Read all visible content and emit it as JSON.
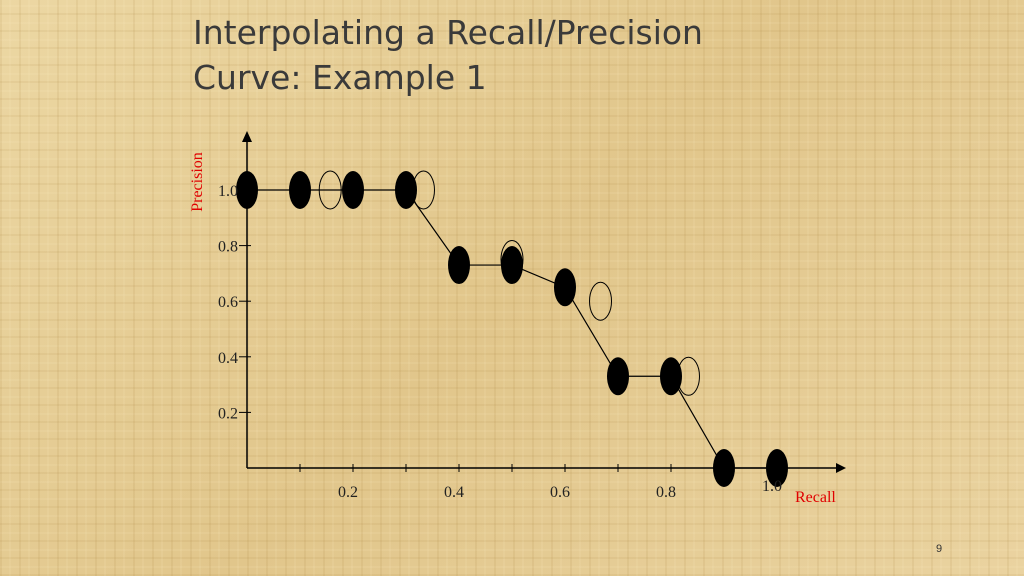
{
  "slide": {
    "title_line1": "Interpolating a Recall/Precision",
    "title_line2": "Curve: Example 1",
    "page_number": "9"
  },
  "chart_data": {
    "type": "scatter",
    "title": "",
    "xlabel": "Recall",
    "ylabel": "Precision",
    "axis_label_color": "#e00000",
    "x_tick_labels": [
      "0.2",
      "0.4",
      "0.6",
      "0.8",
      "1.0"
    ],
    "y_tick_labels": [
      "0.2",
      "0.4",
      "0.6",
      "0.8",
      "1.0"
    ],
    "xlim": [
      0,
      1.1
    ],
    "ylim": [
      0,
      1.0
    ],
    "grid": false,
    "series": [
      {
        "marker": "filled-ellipse",
        "x": [
          0.0,
          0.1,
          0.2,
          0.3,
          0.4,
          0.5,
          0.6,
          0.7,
          0.8,
          0.9,
          1.0
        ],
        "y": [
          1.0,
          1.0,
          1.0,
          1.0,
          0.73,
          0.73,
          0.65,
          0.33,
          0.33,
          0.0,
          0.0
        ]
      },
      {
        "marker": "open-ellipse",
        "x": [
          0.157,
          0.333,
          0.5,
          0.667,
          0.833
        ],
        "y": [
          1.0,
          1.0,
          0.75,
          0.6,
          0.33
        ]
      }
    ]
  }
}
